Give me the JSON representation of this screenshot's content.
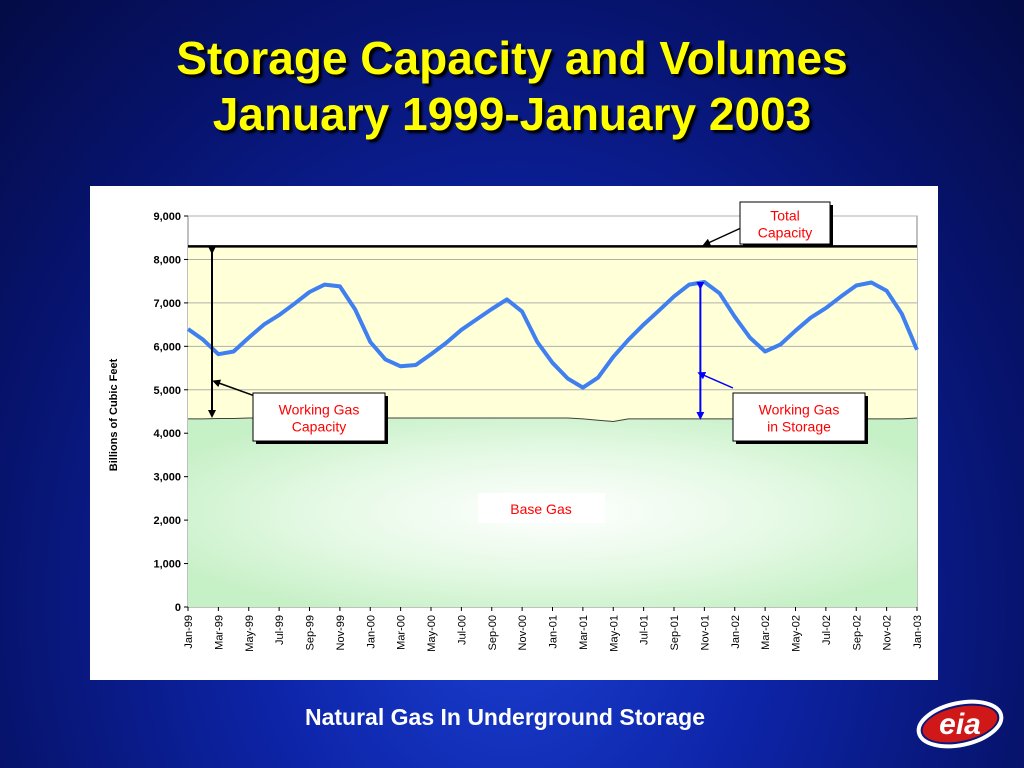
{
  "title": {
    "line1": "Storage Capacity and Volumes",
    "line2": "January 1999-January 2003"
  },
  "footer": "Natural Gas In Underground Storage",
  "logo": {
    "text": "eia",
    "icon": "eia-logo-icon"
  },
  "colors": {
    "background": "#0b1f9a",
    "title": "#ffff00",
    "working_gas_line": "#3f7ff0",
    "base_gas_fill": "#c8f2c8",
    "working_capacity_fill": "#ffffd8",
    "label_text": "#ff0000",
    "capacity_line": "#000000",
    "storage_arrow": "#0000ff"
  },
  "chart_data": {
    "type": "area",
    "ylabel": "Billions of Cubic Feet",
    "xlabel": "",
    "ylim": [
      0,
      9000
    ],
    "yticks": [
      0,
      1000,
      2000,
      3000,
      4000,
      5000,
      6000,
      7000,
      8000,
      9000
    ],
    "ytick_labels": [
      "0",
      "1,000",
      "2,000",
      "3,000",
      "4,000",
      "5,000",
      "6,000",
      "7,000",
      "8,000",
      "9,000"
    ],
    "x_tick_labels": [
      "Jan-99",
      "Mar-99",
      "May-99",
      "Jul-99",
      "Sep-99",
      "Nov-99",
      "Jan-00",
      "Mar-00",
      "May-00",
      "Jul-00",
      "Sep-00",
      "Nov-00",
      "Jan-01",
      "Mar-01",
      "May-01",
      "Jul-01",
      "Sep-01",
      "Nov-01",
      "Jan-02",
      "Mar-02",
      "May-02",
      "Jul-02",
      "Sep-02",
      "Nov-02",
      "Jan-03"
    ],
    "total_capacity": 8300,
    "base_gas": [
      4330,
      4330,
      4340,
      4340,
      4350,
      4350,
      4350,
      4350,
      4350,
      4350,
      4350,
      4350,
      4350,
      4350,
      4350,
      4350,
      4350,
      4350,
      4350,
      4350,
      4350,
      4350,
      4350,
      4350,
      4350,
      4350,
      4330,
      4300,
      4270,
      4330,
      4330,
      4330,
      4330,
      4330,
      4330,
      4330,
      4330,
      4330,
      4300,
      4330,
      4330,
      4330,
      4330,
      4330,
      4330,
      4330,
      4330,
      4330,
      4350
    ],
    "working_gas_in_storage": [
      6400,
      6150,
      5820,
      5880,
      6200,
      6500,
      6720,
      6980,
      7250,
      7420,
      7380,
      6850,
      6100,
      5700,
      5540,
      5570,
      5820,
      6080,
      6380,
      6620,
      6860,
      7080,
      6800,
      6100,
      5620,
      5260,
      5050,
      5280,
      5760,
      6150,
      6500,
      6820,
      7150,
      7420,
      7480,
      7220,
      6680,
      6200,
      5880,
      6040,
      6360,
      6660,
      6880,
      7150,
      7400,
      7470,
      7280,
      6750,
      5920
    ],
    "annotations": {
      "total_capacity": "Total Capacity",
      "working_gas_capacity": "Working Gas Capacity",
      "working_gas_in_storage": "Working Gas in Storage",
      "base_gas": "Base Gas"
    },
    "grid": "horizontal",
    "legend": "none"
  }
}
